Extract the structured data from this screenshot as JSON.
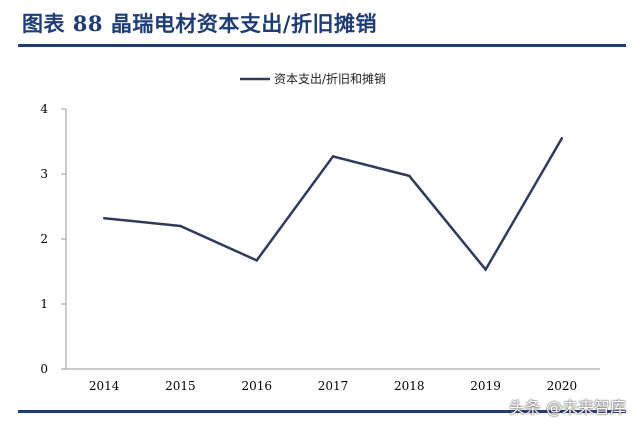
{
  "figure_title": "图表 88   晶瑞电材资本支出/折旧摊销",
  "watermark": "头条 @未来智库",
  "colors": {
    "title": "#1f3c74",
    "line": "#2e3b5c",
    "axis": "#9a9a9a"
  },
  "chart_data": {
    "type": "line",
    "title": "",
    "xlabel": "",
    "ylabel": "",
    "categories": [
      "2014",
      "2015",
      "2016",
      "2017",
      "2018",
      "2019",
      "2020"
    ],
    "series": [
      {
        "name": "资本支出/折旧和摊销",
        "values": [
          2.32,
          2.2,
          1.67,
          3.27,
          2.97,
          1.53,
          3.55
        ]
      }
    ],
    "ylim": [
      0,
      4
    ],
    "yticks": [
      0,
      1,
      2,
      3,
      4
    ],
    "grid": false,
    "legend_position": "top-center"
  }
}
